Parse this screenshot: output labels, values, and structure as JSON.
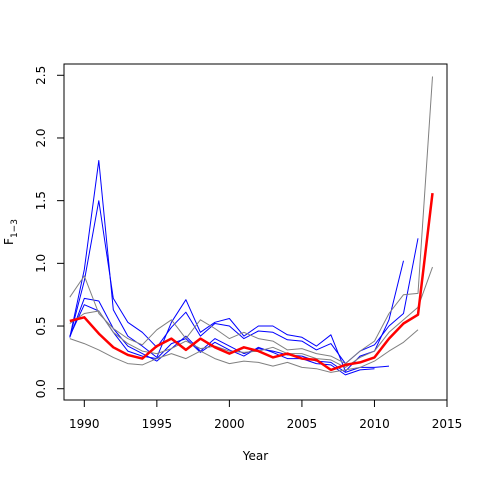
{
  "chart_data": {
    "type": "line",
    "xlabel": "Year",
    "ylabel": "F",
    "ylabel_subscript": "1−3",
    "xlim": [
      1988.6,
      2015
    ],
    "ylim": [
      -0.09,
      2.59
    ],
    "x_ticks": [
      1990,
      1995,
      2000,
      2005,
      2010,
      2015
    ],
    "y_ticks": [
      0.0,
      0.5,
      1.0,
      1.5,
      2.0,
      2.5
    ],
    "y_tick_labels": [
      "0.0",
      "0.5",
      "1.0",
      "1.5",
      "2.0",
      "2.5"
    ],
    "grid": false,
    "colors": {
      "blue": "#0000ff",
      "grey": "#808080",
      "red": "#ff0000",
      "axis": "#000000"
    },
    "series": [
      {
        "color": "blue",
        "width": 1,
        "x": [
          1989,
          1990,
          1991,
          1992,
          1993,
          1994,
          1995,
          1996,
          1997,
          1998,
          1999,
          2000,
          2001,
          2002,
          2003,
          2004,
          2005,
          2006,
          2007,
          2008,
          2009,
          2010,
          2011,
          2012
        ],
        "y": [
          0.41,
          0.95,
          1.82,
          0.63,
          0.42,
          0.34,
          0.25,
          0.53,
          0.71,
          0.45,
          0.53,
          0.56,
          0.42,
          0.5,
          0.5,
          0.43,
          0.41,
          0.34,
          0.43,
          0.14,
          0.26,
          0.3,
          0.55,
          1.02
        ]
      },
      {
        "color": "blue",
        "width": 1,
        "x": [
          1989,
          1990,
          1991,
          1992,
          1993,
          1994,
          1995,
          1996,
          1997,
          1998,
          1999,
          2000,
          2001,
          2002,
          2003,
          2004,
          2005,
          2006,
          2007,
          2008,
          2009,
          2010,
          2011,
          2012,
          2013
        ],
        "y": [
          0.41,
          0.86,
          1.5,
          0.72,
          0.53,
          0.45,
          0.33,
          0.49,
          0.61,
          0.42,
          0.52,
          0.5,
          0.4,
          0.46,
          0.45,
          0.39,
          0.38,
          0.31,
          0.36,
          0.2,
          0.3,
          0.35,
          0.5,
          0.6,
          1.2
        ]
      },
      {
        "color": "blue",
        "width": 1,
        "x": [
          1989,
          1990,
          1991,
          1992,
          1993,
          1994,
          1995,
          1996,
          1997,
          1998,
          1999,
          2000,
          2001,
          2002,
          2003,
          2004,
          2005,
          2006,
          2007,
          2008,
          2009,
          2010,
          2011
        ],
        "y": [
          0.41,
          0.72,
          0.7,
          0.48,
          0.34,
          0.28,
          0.22,
          0.32,
          0.42,
          0.3,
          0.4,
          0.34,
          0.28,
          0.32,
          0.3,
          0.27,
          0.26,
          0.22,
          0.21,
          0.13,
          0.17,
          0.17,
          0.18
        ]
      },
      {
        "color": "blue",
        "width": 1,
        "x": [
          1989,
          1990,
          1991,
          1992,
          1993,
          1994,
          1995,
          1996,
          1997,
          1998,
          1999,
          2000,
          2001,
          2002,
          2003,
          2004,
          2005,
          2006,
          2007,
          2008,
          2009,
          2010
        ],
        "y": [
          0.42,
          0.67,
          0.62,
          0.45,
          0.3,
          0.26,
          0.24,
          0.36,
          0.4,
          0.29,
          0.37,
          0.31,
          0.26,
          0.33,
          0.29,
          0.24,
          0.24,
          0.2,
          0.19,
          0.11,
          0.15,
          0.16
        ]
      },
      {
        "color": "grey",
        "width": 1,
        "x": [
          1989,
          1990,
          1991,
          1992,
          1993,
          1994,
          1995,
          1996,
          1997,
          1998,
          1999,
          2000,
          2001,
          2002,
          2003,
          2004,
          2005,
          2006,
          2007,
          2008,
          2009,
          2010,
          2011,
          2012,
          2013,
          2014
        ],
        "y": [
          0.73,
          0.9,
          0.6,
          0.48,
          0.4,
          0.35,
          0.47,
          0.55,
          0.4,
          0.55,
          0.48,
          0.4,
          0.45,
          0.4,
          0.38,
          0.31,
          0.32,
          0.28,
          0.26,
          0.2,
          0.3,
          0.38,
          0.6,
          0.75,
          0.76,
          2.49
        ]
      },
      {
        "color": "grey",
        "width": 1,
        "x": [
          1989,
          1990,
          1991,
          1992,
          1993,
          1994,
          1995,
          1996,
          1997,
          1998,
          1999,
          2000,
          2001,
          2002,
          2003,
          2004,
          2005,
          2006,
          2007,
          2008,
          2009,
          2010,
          2011,
          2012,
          2013,
          2014
        ],
        "y": [
          0.52,
          0.6,
          0.62,
          0.45,
          0.36,
          0.3,
          0.28,
          0.32,
          0.38,
          0.32,
          0.34,
          0.3,
          0.29,
          0.3,
          0.33,
          0.28,
          0.28,
          0.24,
          0.23,
          0.17,
          0.25,
          0.3,
          0.45,
          0.55,
          0.65,
          0.97
        ]
      },
      {
        "color": "grey",
        "width": 1,
        "x": [
          1989,
          1990,
          1991,
          1992,
          1993,
          1994,
          1995,
          1996,
          1997,
          1998,
          1999,
          2000,
          2001,
          2002,
          2003,
          2004,
          2005,
          2006,
          2007,
          2008,
          2009,
          2010,
          2011,
          2012,
          2013
        ],
        "y": [
          0.4,
          0.36,
          0.31,
          0.25,
          0.2,
          0.19,
          0.24,
          0.28,
          0.24,
          0.3,
          0.24,
          0.2,
          0.22,
          0.21,
          0.18,
          0.21,
          0.17,
          0.16,
          0.13,
          0.15,
          0.17,
          0.22,
          0.3,
          0.37,
          0.47
        ]
      },
      {
        "color": "red",
        "width": 2.5,
        "x": [
          1989,
          1990,
          1991,
          1992,
          1993,
          1994,
          1995,
          1996,
          1997,
          1998,
          1999,
          2000,
          2001,
          2002,
          2003,
          2004,
          2005,
          2006,
          2007,
          2008,
          2009,
          2010,
          2011,
          2012,
          2013,
          2014
        ],
        "y": [
          0.54,
          0.57,
          0.44,
          0.33,
          0.27,
          0.24,
          0.34,
          0.4,
          0.31,
          0.4,
          0.33,
          0.28,
          0.33,
          0.3,
          0.25,
          0.28,
          0.24,
          0.23,
          0.15,
          0.19,
          0.21,
          0.25,
          0.4,
          0.52,
          0.59,
          1.56
        ]
      }
    ]
  }
}
